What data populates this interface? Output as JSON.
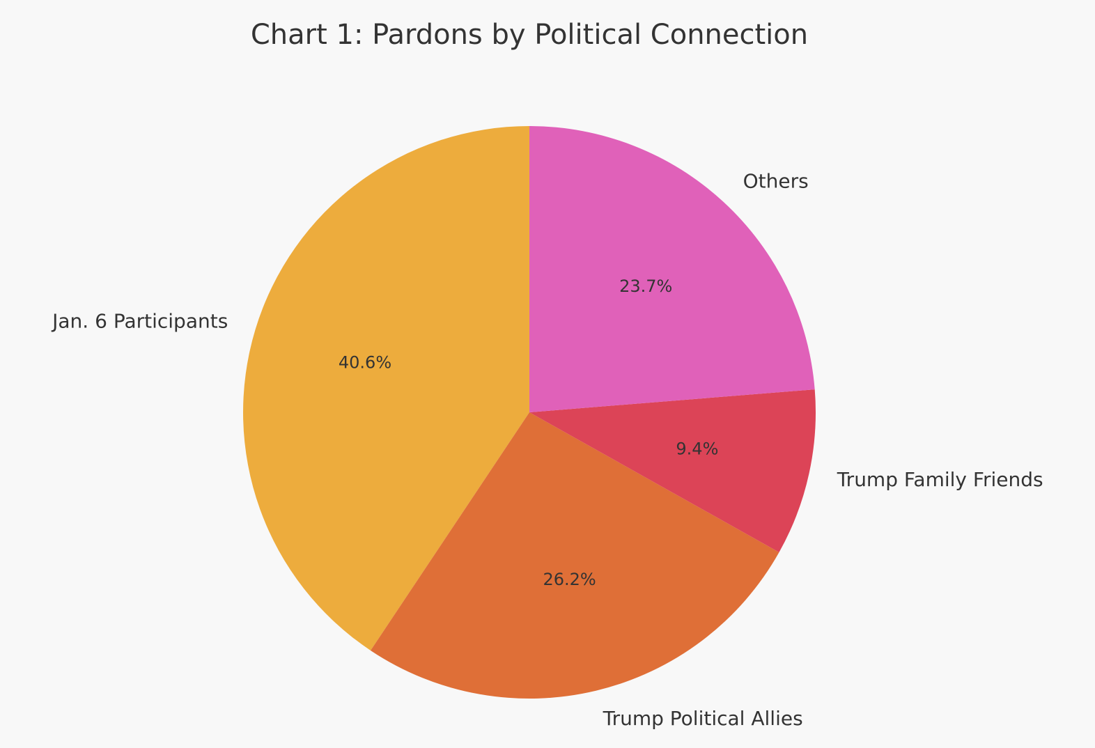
{
  "chart_data": {
    "type": "pie",
    "title": "Chart 1: Pardons by Political Connection",
    "categories": [
      "Jan. 6 Participants",
      "Trump Political Allies",
      "Trump Family Friends",
      "Others"
    ],
    "values": [
      40.6,
      26.2,
      9.4,
      23.7
    ],
    "labels": [
      "40.6%",
      "26.2%",
      "9.4%",
      "23.7%"
    ],
    "colors": [
      "#edac3d",
      "#df6f37",
      "#dc4457",
      "#e061b9"
    ],
    "start_angle": "top (90°), counter-clockwise",
    "legend": "none (labels beside slices)"
  }
}
